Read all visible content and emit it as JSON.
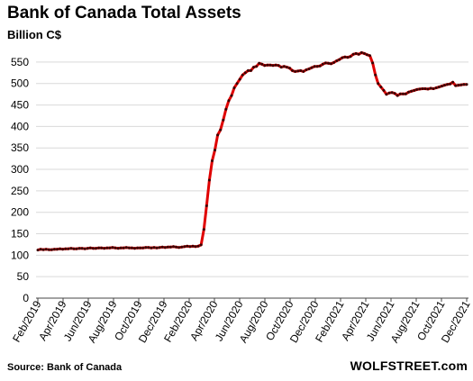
{
  "title": "Bank of Canada Total Assets",
  "unit_label": "Billion C$",
  "source": "Source: Bank of Canada",
  "brand": "WOLFSTREET.com",
  "chart_data": {
    "type": "line",
    "x_tick_labels": [
      "Feb/2019",
      "Apr/2019",
      "Jun/2019",
      "Aug/2019",
      "Oct/2019",
      "Dec/2019",
      "Feb/2020",
      "Apr/2020",
      "Jun/2020",
      "Aug/2020",
      "Oct/2020",
      "Dec/2020",
      "Feb/2021",
      "Apr/2021",
      "Jun/2021",
      "Aug/2021",
      "Oct/2021",
      "Dec/2021"
    ],
    "y_ticks": [
      0,
      50,
      100,
      150,
      200,
      250,
      300,
      350,
      400,
      450,
      500,
      550
    ],
    "ylim": [
      0,
      575
    ],
    "xlim": [
      0,
      155
    ],
    "grid": "horizontal",
    "line_color": "#e00000",
    "marker_color": "#3a0000",
    "series": [
      {
        "values": [
          112,
          114,
          113,
          114,
          113,
          113,
          114,
          114,
          115,
          114,
          115,
          115,
          116,
          115,
          115,
          116,
          116,
          115,
          116,
          117,
          116,
          116,
          117,
          117,
          116,
          117,
          117,
          118,
          117,
          116,
          117,
          117,
          118,
          117,
          117,
          116,
          117,
          117,
          117,
          118,
          118,
          117,
          118,
          117,
          118,
          119,
          118,
          119,
          119,
          120,
          119,
          118,
          119,
          120,
          121,
          120,
          121,
          120,
          121,
          124,
          160,
          215,
          275,
          320,
          345,
          380,
          392,
          415,
          440,
          460,
          472,
          490,
          500,
          510,
          520,
          525,
          530,
          530,
          538,
          540,
          547,
          545,
          542,
          543,
          543,
          542,
          543,
          542,
          538,
          540,
          538,
          536,
          530,
          528,
          529,
          530,
          528,
          532,
          534,
          537,
          540,
          540,
          541,
          545,
          548,
          547,
          546,
          549,
          553,
          556,
          560,
          562,
          561,
          563,
          568,
          570,
          568,
          572,
          570,
          567,
          565,
          548,
          520,
          500,
          492,
          484,
          475,
          478,
          479,
          477,
          472,
          476,
          476,
          476,
          480,
          482,
          484,
          486,
          487,
          488,
          488,
          487,
          489,
          488,
          490,
          492,
          494,
          496,
          498,
          499,
          503,
          495,
          496,
          497,
          498,
          498
        ]
      }
    ]
  }
}
